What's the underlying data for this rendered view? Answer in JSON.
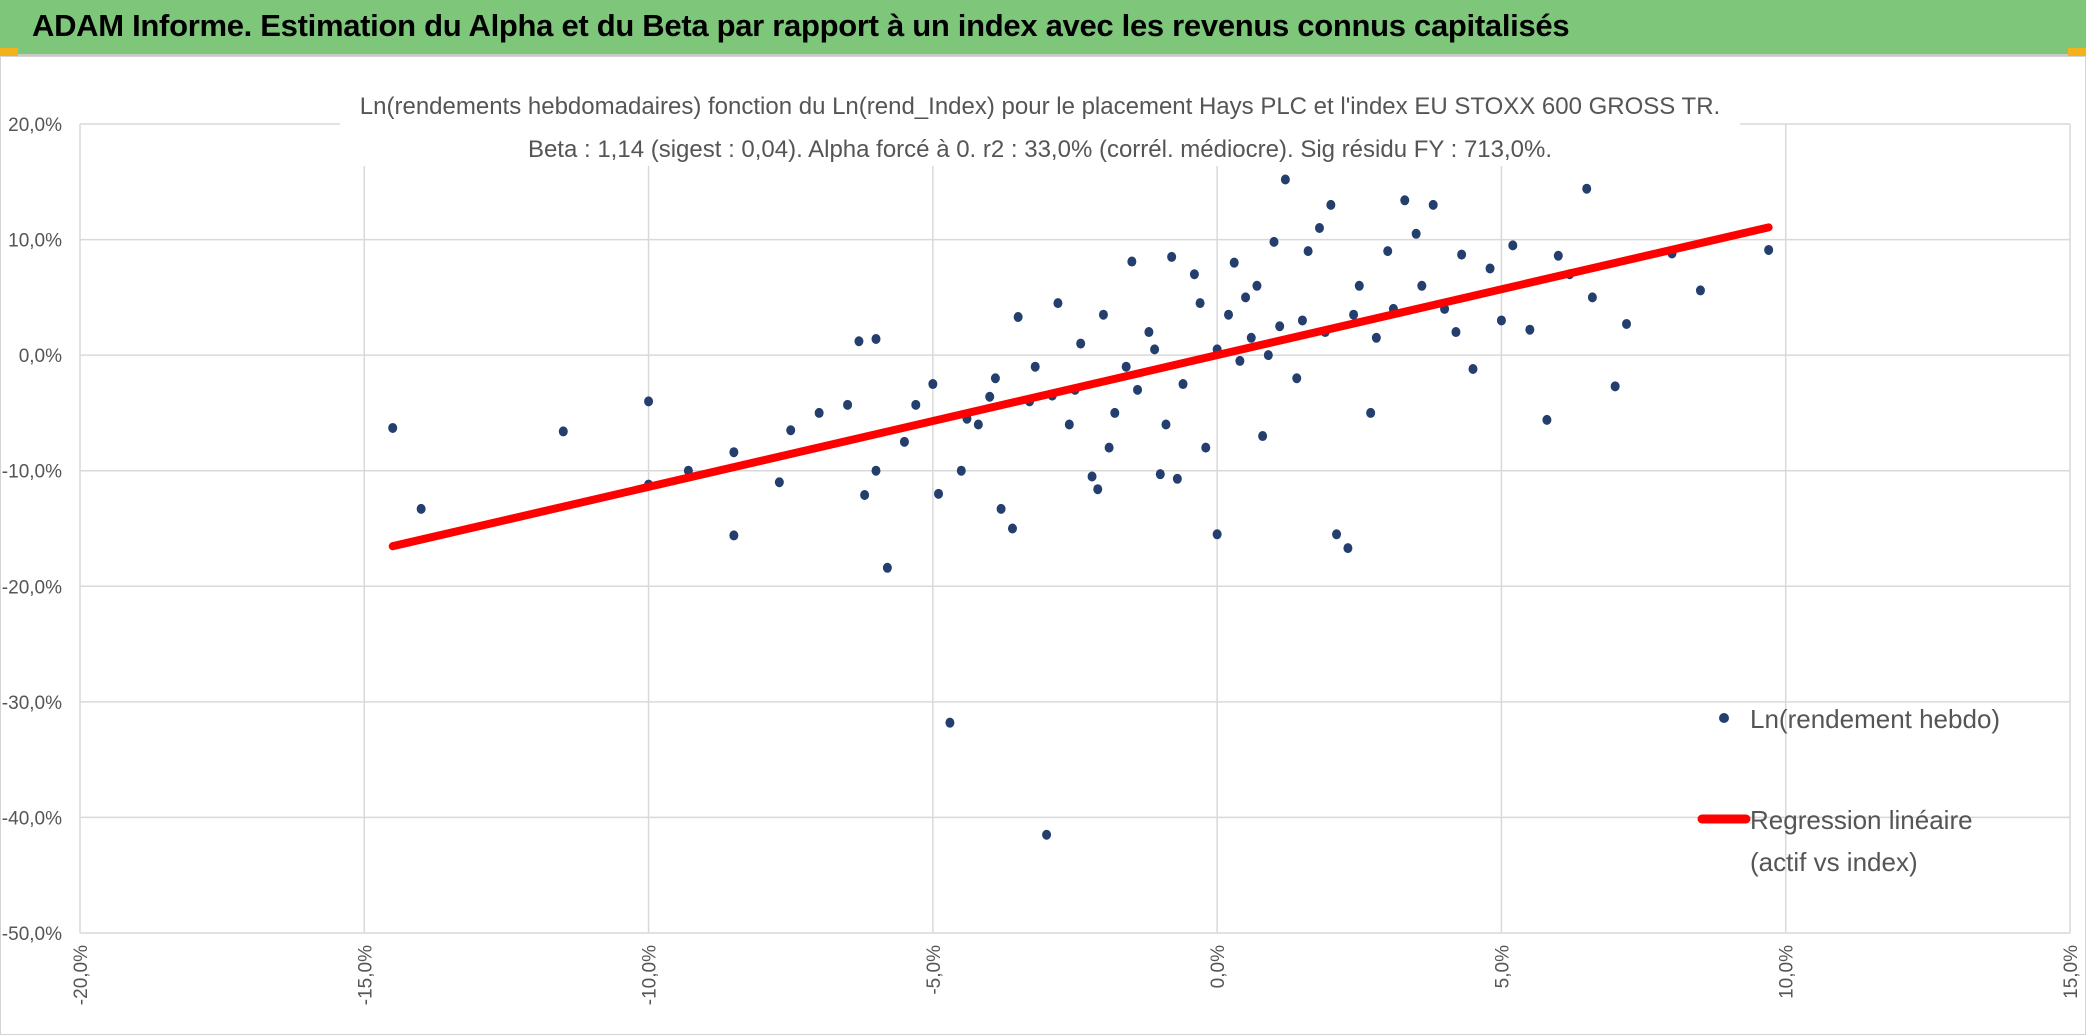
{
  "header": {
    "title": "ADAM Informe. Estimation du Alpha et du Beta par rapport à un index avec les revenus connus capitalisés"
  },
  "colors": {
    "header_bg": "#7dc67a",
    "points": "#243f6e",
    "regression": "#ff0000",
    "corner_accent": "#f2b21b"
  },
  "chart_data": {
    "type": "scatter",
    "title": "Ln(rendements hebdomadaires) fonction du Ln(rend_Index) pour le placement Hays PLC et l'index EU STOXX 600 GROSS TR.",
    "subtitle": "Beta : 1,14 (sigest : 0,04). Alpha forcé à 0. r2 : 33,0% (corrél. médiocre). Sig résidu FY : 713,0%.",
    "xlabel": "",
    "ylabel": "",
    "xlim": [
      -0.2,
      0.15
    ],
    "ylim": [
      -0.5,
      0.2
    ],
    "x_ticks": [
      -0.2,
      -0.15,
      -0.1,
      -0.05,
      0.0,
      0.05,
      0.1,
      0.15
    ],
    "y_ticks": [
      0.2,
      0.1,
      0.0,
      -0.1,
      -0.2,
      -0.3,
      -0.4,
      -0.5
    ],
    "x_tick_labels": [
      "-20,0%",
      "-15,0%",
      "-10,0%",
      "-5,0%",
      "0,0%",
      "5,0%",
      "10,0%",
      "15,0%"
    ],
    "y_tick_labels": [
      "20,0%",
      "10,0%",
      "0,0%",
      "-10,0%",
      "-20,0%",
      "-30,0%",
      "-40,0%",
      "-50,0%"
    ],
    "grid": true,
    "legend_position": "right",
    "series": [
      {
        "name": "Ln(rendement hebdo)",
        "kind": "scatter",
        "points": [
          [
            -0.145,
            -0.063
          ],
          [
            -0.14,
            -0.133
          ],
          [
            -0.115,
            -0.066
          ],
          [
            -0.1,
            -0.04
          ],
          [
            -0.1,
            -0.112
          ],
          [
            -0.093,
            -0.1
          ],
          [
            -0.085,
            -0.084
          ],
          [
            -0.085,
            -0.156
          ],
          [
            -0.077,
            -0.11
          ],
          [
            -0.075,
            -0.065
          ],
          [
            -0.07,
            -0.05
          ],
          [
            -0.065,
            -0.043
          ],
          [
            -0.063,
            0.012
          ],
          [
            -0.062,
            -0.121
          ],
          [
            -0.06,
            0.014
          ],
          [
            -0.06,
            -0.1
          ],
          [
            -0.058,
            -0.184
          ],
          [
            -0.055,
            -0.075
          ],
          [
            -0.053,
            -0.043
          ],
          [
            -0.05,
            -0.025
          ],
          [
            -0.049,
            -0.12
          ],
          [
            -0.047,
            -0.318
          ],
          [
            -0.045,
            -0.1
          ],
          [
            -0.042,
            -0.06
          ],
          [
            -0.04,
            -0.036
          ],
          [
            -0.038,
            -0.133
          ],
          [
            -0.036,
            -0.15
          ],
          [
            -0.035,
            0.033
          ],
          [
            -0.033,
            -0.04
          ],
          [
            -0.03,
            -0.415
          ],
          [
            -0.028,
            0.045
          ],
          [
            -0.025,
            -0.03
          ],
          [
            -0.022,
            -0.105
          ],
          [
            -0.021,
            -0.116
          ],
          [
            -0.02,
            0.035
          ],
          [
            -0.015,
            0.081
          ],
          [
            -0.012,
            0.02
          ],
          [
            -0.01,
            -0.103
          ],
          [
            -0.008,
            0.085
          ],
          [
            -0.007,
            -0.107
          ],
          [
            -0.004,
            0.07
          ],
          [
            -0.002,
            -0.08
          ],
          [
            0.0,
            -0.155
          ],
          [
            0.003,
            0.08
          ],
          [
            0.005,
            0.05
          ],
          [
            0.008,
            -0.07
          ],
          [
            0.01,
            0.098
          ],
          [
            0.012,
            0.152
          ],
          [
            0.015,
            0.03
          ],
          [
            0.016,
            0.09
          ],
          [
            0.018,
            0.11
          ],
          [
            0.02,
            0.13
          ],
          [
            0.021,
            -0.155
          ],
          [
            0.023,
            -0.167
          ],
          [
            0.025,
            0.06
          ],
          [
            0.027,
            -0.05
          ],
          [
            0.03,
            0.09
          ],
          [
            0.033,
            0.134
          ],
          [
            0.035,
            0.105
          ],
          [
            0.038,
            0.13
          ],
          [
            0.04,
            0.04
          ],
          [
            0.043,
            0.087
          ],
          [
            0.045,
            -0.012
          ],
          [
            0.048,
            0.075
          ],
          [
            0.05,
            0.03
          ],
          [
            0.052,
            0.095
          ],
          [
            0.055,
            0.022
          ],
          [
            0.058,
            -0.056
          ],
          [
            0.06,
            0.086
          ],
          [
            0.062,
            0.07
          ],
          [
            0.065,
            0.144
          ],
          [
            0.066,
            0.05
          ],
          [
            0.07,
            -0.027
          ],
          [
            0.072,
            0.027
          ],
          [
            0.08,
            0.088
          ],
          [
            0.085,
            0.056
          ],
          [
            0.097,
            0.091
          ],
          [
            -0.032,
            -0.01
          ],
          [
            -0.018,
            -0.05
          ],
          [
            -0.006,
            -0.025
          ],
          [
            0.0,
            0.005
          ],
          [
            0.004,
            -0.005
          ],
          [
            0.006,
            0.015
          ],
          [
            0.009,
            0.0
          ],
          [
            0.011,
            0.025
          ],
          [
            -0.011,
            0.005
          ],
          [
            -0.014,
            -0.03
          ],
          [
            0.002,
            0.035
          ],
          [
            0.014,
            -0.02
          ],
          [
            0.019,
            0.02
          ],
          [
            0.024,
            0.035
          ],
          [
            0.028,
            0.015
          ],
          [
            0.031,
            0.04
          ],
          [
            0.036,
            0.06
          ],
          [
            0.042,
            0.02
          ],
          [
            -0.026,
            -0.06
          ],
          [
            -0.019,
            -0.08
          ],
          [
            -0.009,
            -0.06
          ],
          [
            -0.003,
            0.045
          ],
          [
            0.007,
            0.06
          ],
          [
            -0.044,
            -0.055
          ],
          [
            -0.039,
            -0.02
          ],
          [
            -0.029,
            -0.035
          ],
          [
            -0.024,
            0.01
          ],
          [
            -0.016,
            -0.01
          ]
        ]
      },
      {
        "name": "Regression linéaire",
        "name_line2": "(actif vs index)",
        "kind": "line",
        "beta": 1.14,
        "x_range": [
          -0.145,
          0.097
        ]
      }
    ]
  }
}
